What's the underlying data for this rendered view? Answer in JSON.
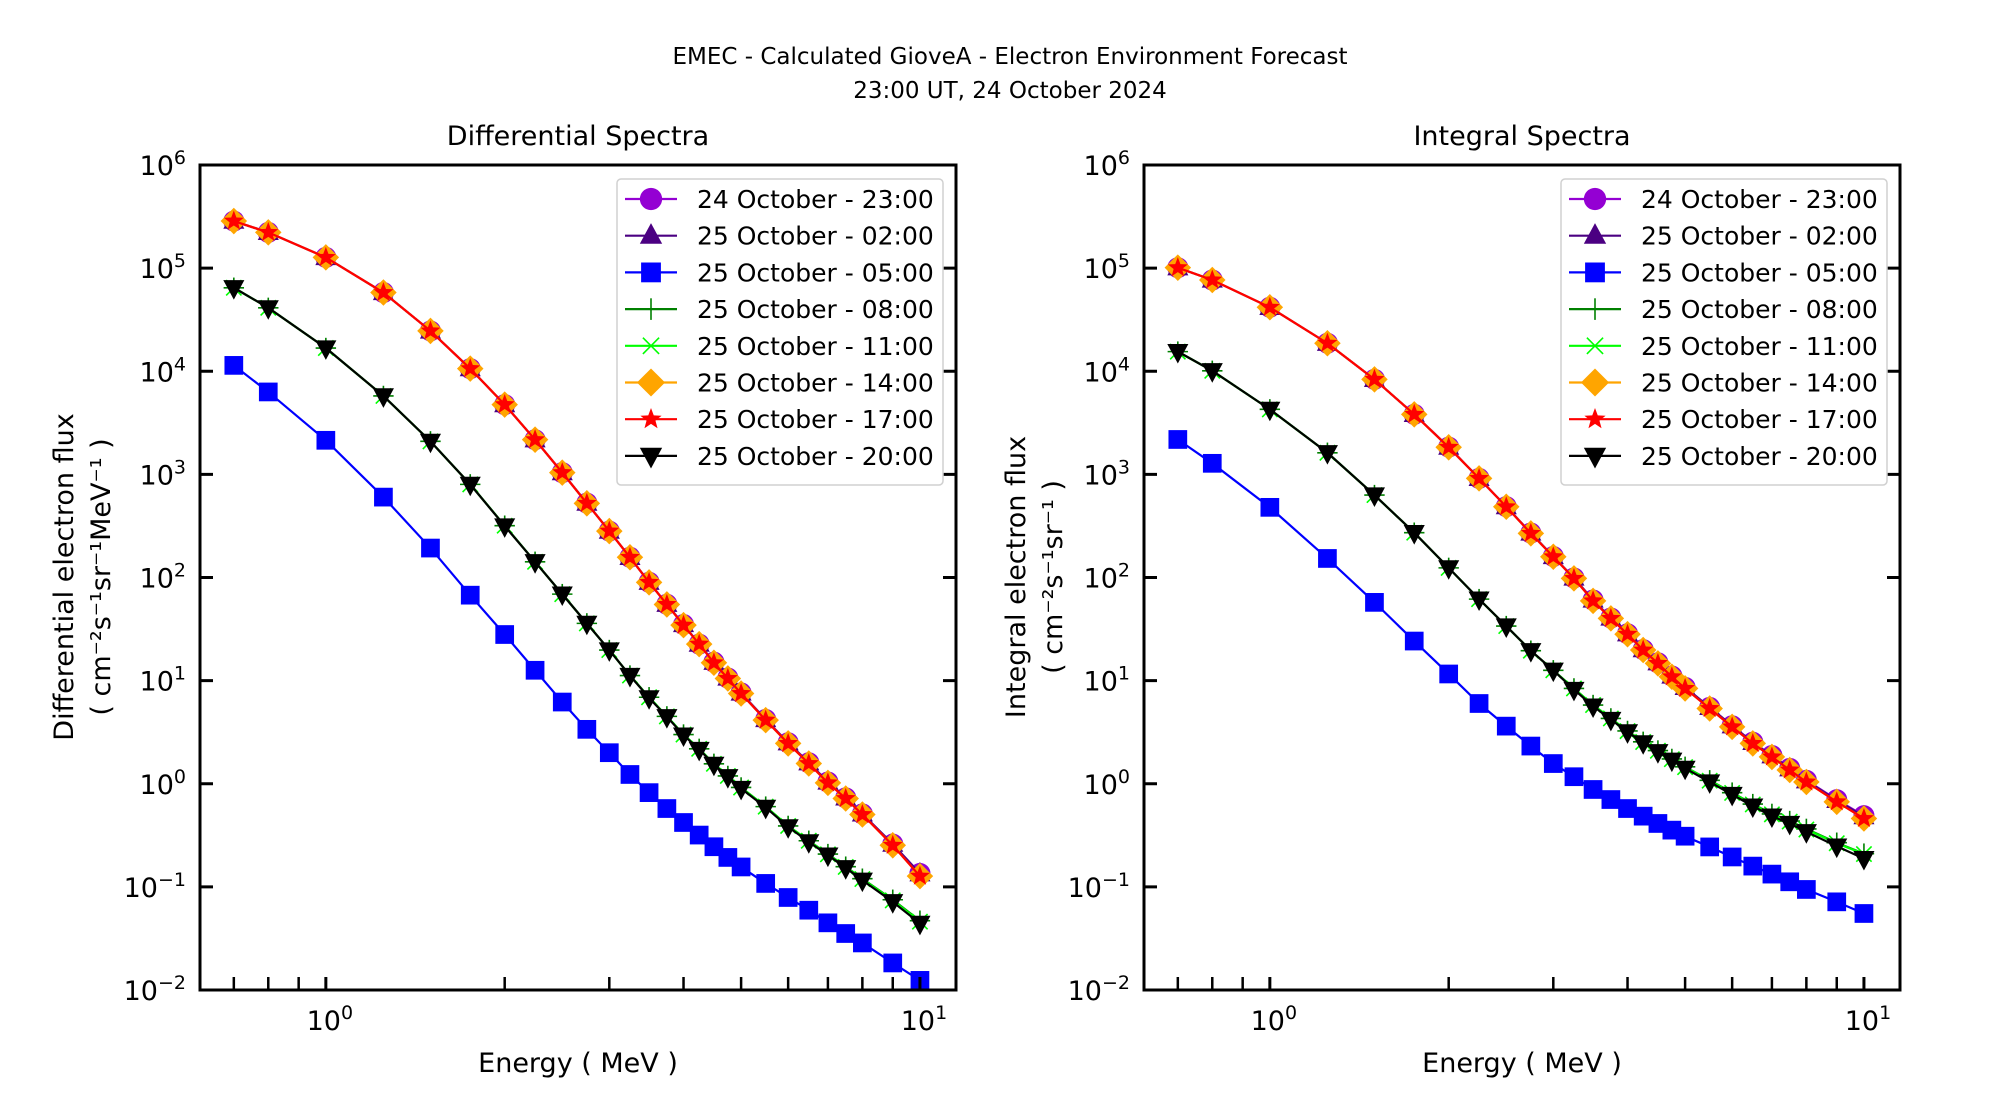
{
  "figure": {
    "title_line1": "EMEC - Calculated GioveA - Electron Environment Forecast",
    "title_line2": "23:00 UT, 24 October 2024"
  },
  "chart_data": [
    {
      "id": "differential",
      "type": "line",
      "title": "Differential Spectra",
      "xlabel": "Energy ( MeV )",
      "ylabel": "Differential electron flux",
      "ylabel_units": "( cm⁻²s⁻¹sr⁻¹MeV⁻¹ )",
      "xscale": "log",
      "yscale": "log",
      "xlim": [
        0.614,
        11.5
      ],
      "ylim": [
        0.01,
        1000000
      ],
      "xticks": [
        {
          "value": 1,
          "label": "10",
          "exp": "0"
        },
        {
          "value": 10,
          "label": "10",
          "exp": "1"
        }
      ],
      "yticks": [
        {
          "value": 1000000,
          "label": "10",
          "exp": "6"
        },
        {
          "value": 100000,
          "label": "10",
          "exp": "5"
        },
        {
          "value": 10000,
          "label": "10",
          "exp": "4"
        },
        {
          "value": 1000,
          "label": "10",
          "exp": "3"
        },
        {
          "value": 100,
          "label": "10",
          "exp": "2"
        },
        {
          "value": 10,
          "label": "10",
          "exp": "1"
        },
        {
          "value": 1,
          "label": "10",
          "exp": "0"
        },
        {
          "value": 0.1,
          "label": "10",
          "exp": "−1"
        },
        {
          "value": 0.01,
          "label": "10",
          "exp": "−2"
        }
      ],
      "minor_xticks": [
        0.7,
        0.8,
        0.9,
        2,
        3,
        4,
        5,
        6,
        7,
        8,
        9
      ],
      "grid": false,
      "legend_position": "top-right",
      "x": [
        0.7,
        0.8,
        1.0,
        1.25,
        1.5,
        1.75,
        2.0,
        2.25,
        2.5,
        2.75,
        3.0,
        3.25,
        3.5,
        3.75,
        4.0,
        4.25,
        4.5,
        4.75,
        5.0,
        5.5,
        6.0,
        6.5,
        7.0,
        7.5,
        8.0,
        9.0,
        10.0
      ],
      "series": [
        {
          "name": "24 October - 23:00",
          "color": "#9400D3",
          "marker": "circle",
          "values": [
            286000,
            222000,
            127000,
            58000,
            24600,
            10600,
            4750,
            2170,
            1040,
            527,
            282,
            157,
            90,
            55,
            35,
            22.6,
            15.1,
            10.6,
            7.6,
            4.2,
            2.5,
            1.6,
            1.04,
            0.73,
            0.51,
            0.26,
            0.135
          ]
        },
        {
          "name": "25 October - 02:00",
          "color": "#4B0082",
          "marker": "triangle-up",
          "values": [
            286000,
            222000,
            127000,
            58000,
            24600,
            10600,
            4750,
            2170,
            1040,
            527,
            282,
            157,
            90,
            55,
            35,
            22.6,
            15.1,
            10.6,
            7.6,
            4.2,
            2.5,
            1.6,
            1.04,
            0.73,
            0.51,
            0.26,
            0.134
          ]
        },
        {
          "name": "25 October - 05:00",
          "color": "#0000FF",
          "marker": "square",
          "values": [
            11400,
            6300,
            2140,
            602,
            193,
            67.4,
            28,
            12.6,
            6.2,
            3.37,
            2.0,
            1.23,
            0.82,
            0.575,
            0.421,
            0.318,
            0.245,
            0.193,
            0.156,
            0.108,
            0.0789,
            0.0594,
            0.0448,
            0.0353,
            0.0286,
            0.0183,
            0.0124
          ]
        },
        {
          "name": "25 October - 08:00",
          "color": "#008000",
          "marker": "plus",
          "values": [
            64500,
            41200,
            16800,
            5760,
            2090,
            800,
            318,
            142,
            69,
            35.9,
            19.8,
            11.2,
            6.9,
            4.5,
            3.0,
            2.18,
            1.56,
            1.19,
            0.92,
            0.6,
            0.39,
            0.28,
            0.208,
            0.157,
            0.12,
            0.075,
            0.047
          ]
        },
        {
          "name": "25 October - 11:00",
          "color": "#00FF00",
          "marker": "x",
          "values": [
            64500,
            41200,
            16800,
            5760,
            2090,
            800,
            318,
            142,
            69,
            35.9,
            19.8,
            11.2,
            6.9,
            4.5,
            3.0,
            2.18,
            1.56,
            1.19,
            0.92,
            0.6,
            0.39,
            0.28,
            0.207,
            0.156,
            0.119,
            0.074,
            0.046
          ]
        },
        {
          "name": "25 October - 14:00",
          "color": "#FFA500",
          "marker": "diamond",
          "values": [
            286000,
            222000,
            127000,
            58000,
            24600,
            10600,
            4750,
            2170,
            1040,
            524,
            282,
            157,
            89.7,
            54.8,
            34.5,
            22.6,
            14.9,
            10.5,
            7.5,
            4.14,
            2.46,
            1.57,
            1.02,
            0.72,
            0.503,
            0.253,
            0.127
          ]
        },
        {
          "name": "25 October - 17:00",
          "color": "#FF0000",
          "marker": "star",
          "values": [
            286000,
            222000,
            127000,
            58000,
            24600,
            10600,
            4750,
            2170,
            1040,
            524,
            282,
            157,
            89.7,
            54.8,
            34.5,
            22.6,
            14.9,
            10.5,
            7.5,
            4.14,
            2.46,
            1.57,
            1.02,
            0.72,
            0.503,
            0.253,
            0.127
          ]
        },
        {
          "name": "25 October - 20:00",
          "color": "#000000",
          "marker": "triangle-down",
          "values": [
            64500,
            41200,
            16800,
            5760,
            2090,
            800,
            316,
            142,
            69,
            35.9,
            19.8,
            11.2,
            6.8,
            4.46,
            2.96,
            2.15,
            1.54,
            1.17,
            0.9,
            0.589,
            0.382,
            0.273,
            0.203,
            0.153,
            0.116,
            0.0716,
            0.0442
          ]
        }
      ]
    },
    {
      "id": "integral",
      "type": "line",
      "title": "Integral Spectra",
      "xlabel": "Energy ( MeV )",
      "ylabel": "Integral electron flux",
      "ylabel_units": "( cm⁻²s⁻¹sr⁻¹ )",
      "xscale": "log",
      "yscale": "log",
      "xlim": [
        0.614,
        11.5
      ],
      "ylim": [
        0.01,
        1000000
      ],
      "xticks": [
        {
          "value": 1,
          "label": "10",
          "exp": "0"
        },
        {
          "value": 10,
          "label": "10",
          "exp": "1"
        }
      ],
      "yticks": [
        {
          "value": 1000000,
          "label": "10",
          "exp": "6"
        },
        {
          "value": 100000,
          "label": "10",
          "exp": "5"
        },
        {
          "value": 10000,
          "label": "10",
          "exp": "4"
        },
        {
          "value": 1000,
          "label": "10",
          "exp": "3"
        },
        {
          "value": 100,
          "label": "10",
          "exp": "2"
        },
        {
          "value": 10,
          "label": "10",
          "exp": "1"
        },
        {
          "value": 1,
          "label": "10",
          "exp": "0"
        },
        {
          "value": 0.1,
          "label": "10",
          "exp": "−1"
        },
        {
          "value": 0.01,
          "label": "10",
          "exp": "−2"
        }
      ],
      "minor_xticks": [
        0.7,
        0.8,
        0.9,
        2,
        3,
        4,
        5,
        6,
        7,
        8,
        9
      ],
      "grid": false,
      "legend_position": "top-right",
      "x": [
        0.7,
        0.8,
        1.0,
        1.25,
        1.5,
        1.75,
        2.0,
        2.25,
        2.5,
        2.75,
        3.0,
        3.25,
        3.5,
        3.75,
        4.0,
        4.25,
        4.5,
        4.75,
        5.0,
        5.5,
        6.0,
        6.5,
        7.0,
        7.5,
        8.0,
        9.0,
        10.0
      ],
      "series": [
        {
          "name": "24 October - 23:00",
          "color": "#9400D3",
          "marker": "circle",
          "values": [
            101000,
            76700,
            41700,
            18700,
            8350,
            3820,
            1840,
            914,
            487,
            270,
            160,
            99,
            60.5,
            40.5,
            28.5,
            20,
            14.9,
            11.1,
            8.6,
            5.5,
            3.65,
            2.53,
            1.88,
            1.41,
            1.08,
            0.7,
            0.49
          ]
        },
        {
          "name": "25 October - 02:00",
          "color": "#4B0082",
          "marker": "triangle-up",
          "values": [
            101000,
            76700,
            41700,
            18700,
            8350,
            3820,
            1840,
            914,
            487,
            270,
            160,
            99,
            60.5,
            40.5,
            28.5,
            20,
            14.9,
            11.1,
            8.6,
            5.5,
            3.65,
            2.52,
            1.87,
            1.4,
            1.07,
            0.69,
            0.48
          ]
        },
        {
          "name": "25 October - 05:00",
          "color": "#0000FF",
          "marker": "square",
          "values": [
            2180,
            1280,
            479,
            153,
            57.4,
            24.2,
            11.6,
            6.0,
            3.62,
            2.32,
            1.57,
            1.17,
            0.88,
            0.703,
            0.575,
            0.485,
            0.412,
            0.355,
            0.31,
            0.244,
            0.195,
            0.159,
            0.133,
            0.112,
            0.0944,
            0.0716,
            0.0552
          ]
        },
        {
          "name": "25 October - 08:00",
          "color": "#008000",
          "marker": "plus",
          "values": [
            15500,
            10100,
            4270,
            1620,
            630,
            272,
            124,
            61.7,
            33.8,
            19.5,
            12.6,
            8.4,
            5.8,
            4.3,
            3.25,
            2.55,
            2.1,
            1.74,
            1.46,
            1.08,
            0.82,
            0.635,
            0.51,
            0.435,
            0.365,
            0.268,
            0.21
          ]
        },
        {
          "name": "25 October - 11:00",
          "color": "#00FF00",
          "marker": "x",
          "values": [
            15500,
            10100,
            4270,
            1620,
            630,
            272,
            124,
            61.7,
            33.8,
            19.5,
            12.6,
            8.4,
            5.8,
            4.3,
            3.24,
            2.54,
            2.09,
            1.73,
            1.45,
            1.07,
            0.815,
            0.63,
            0.505,
            0.43,
            0.36,
            0.265,
            0.208
          ]
        },
        {
          "name": "25 October - 14:00",
          "color": "#FFA500",
          "marker": "diamond",
          "values": [
            101000,
            76700,
            41700,
            18700,
            8350,
            3820,
            1830,
            914,
            485,
            268,
            159,
            98,
            59.4,
            40.1,
            28.2,
            19.8,
            14.7,
            10.9,
            8.4,
            5.37,
            3.56,
            2.46,
            1.82,
            1.36,
            1.04,
            0.668,
            0.46
          ]
        },
        {
          "name": "25 October - 17:00",
          "color": "#FF0000",
          "marker": "star",
          "values": [
            101000,
            76700,
            41700,
            18700,
            8350,
            3820,
            1830,
            914,
            485,
            268,
            159,
            98,
            59.4,
            40.1,
            28.2,
            19.8,
            14.7,
            10.9,
            8.4,
            5.37,
            3.56,
            2.46,
            1.82,
            1.36,
            1.04,
            0.668,
            0.46
          ]
        },
        {
          "name": "25 October - 20:00",
          "color": "#000000",
          "marker": "triangle-down",
          "values": [
            15500,
            10100,
            4270,
            1620,
            630,
            272,
            124,
            61.7,
            33.8,
            19.5,
            12.6,
            8.2,
            5.66,
            4.2,
            3.18,
            2.49,
            2.04,
            1.69,
            1.41,
            1.04,
            0.787,
            0.607,
            0.485,
            0.412,
            0.342,
            0.248,
            0.188
          ]
        }
      ]
    }
  ]
}
